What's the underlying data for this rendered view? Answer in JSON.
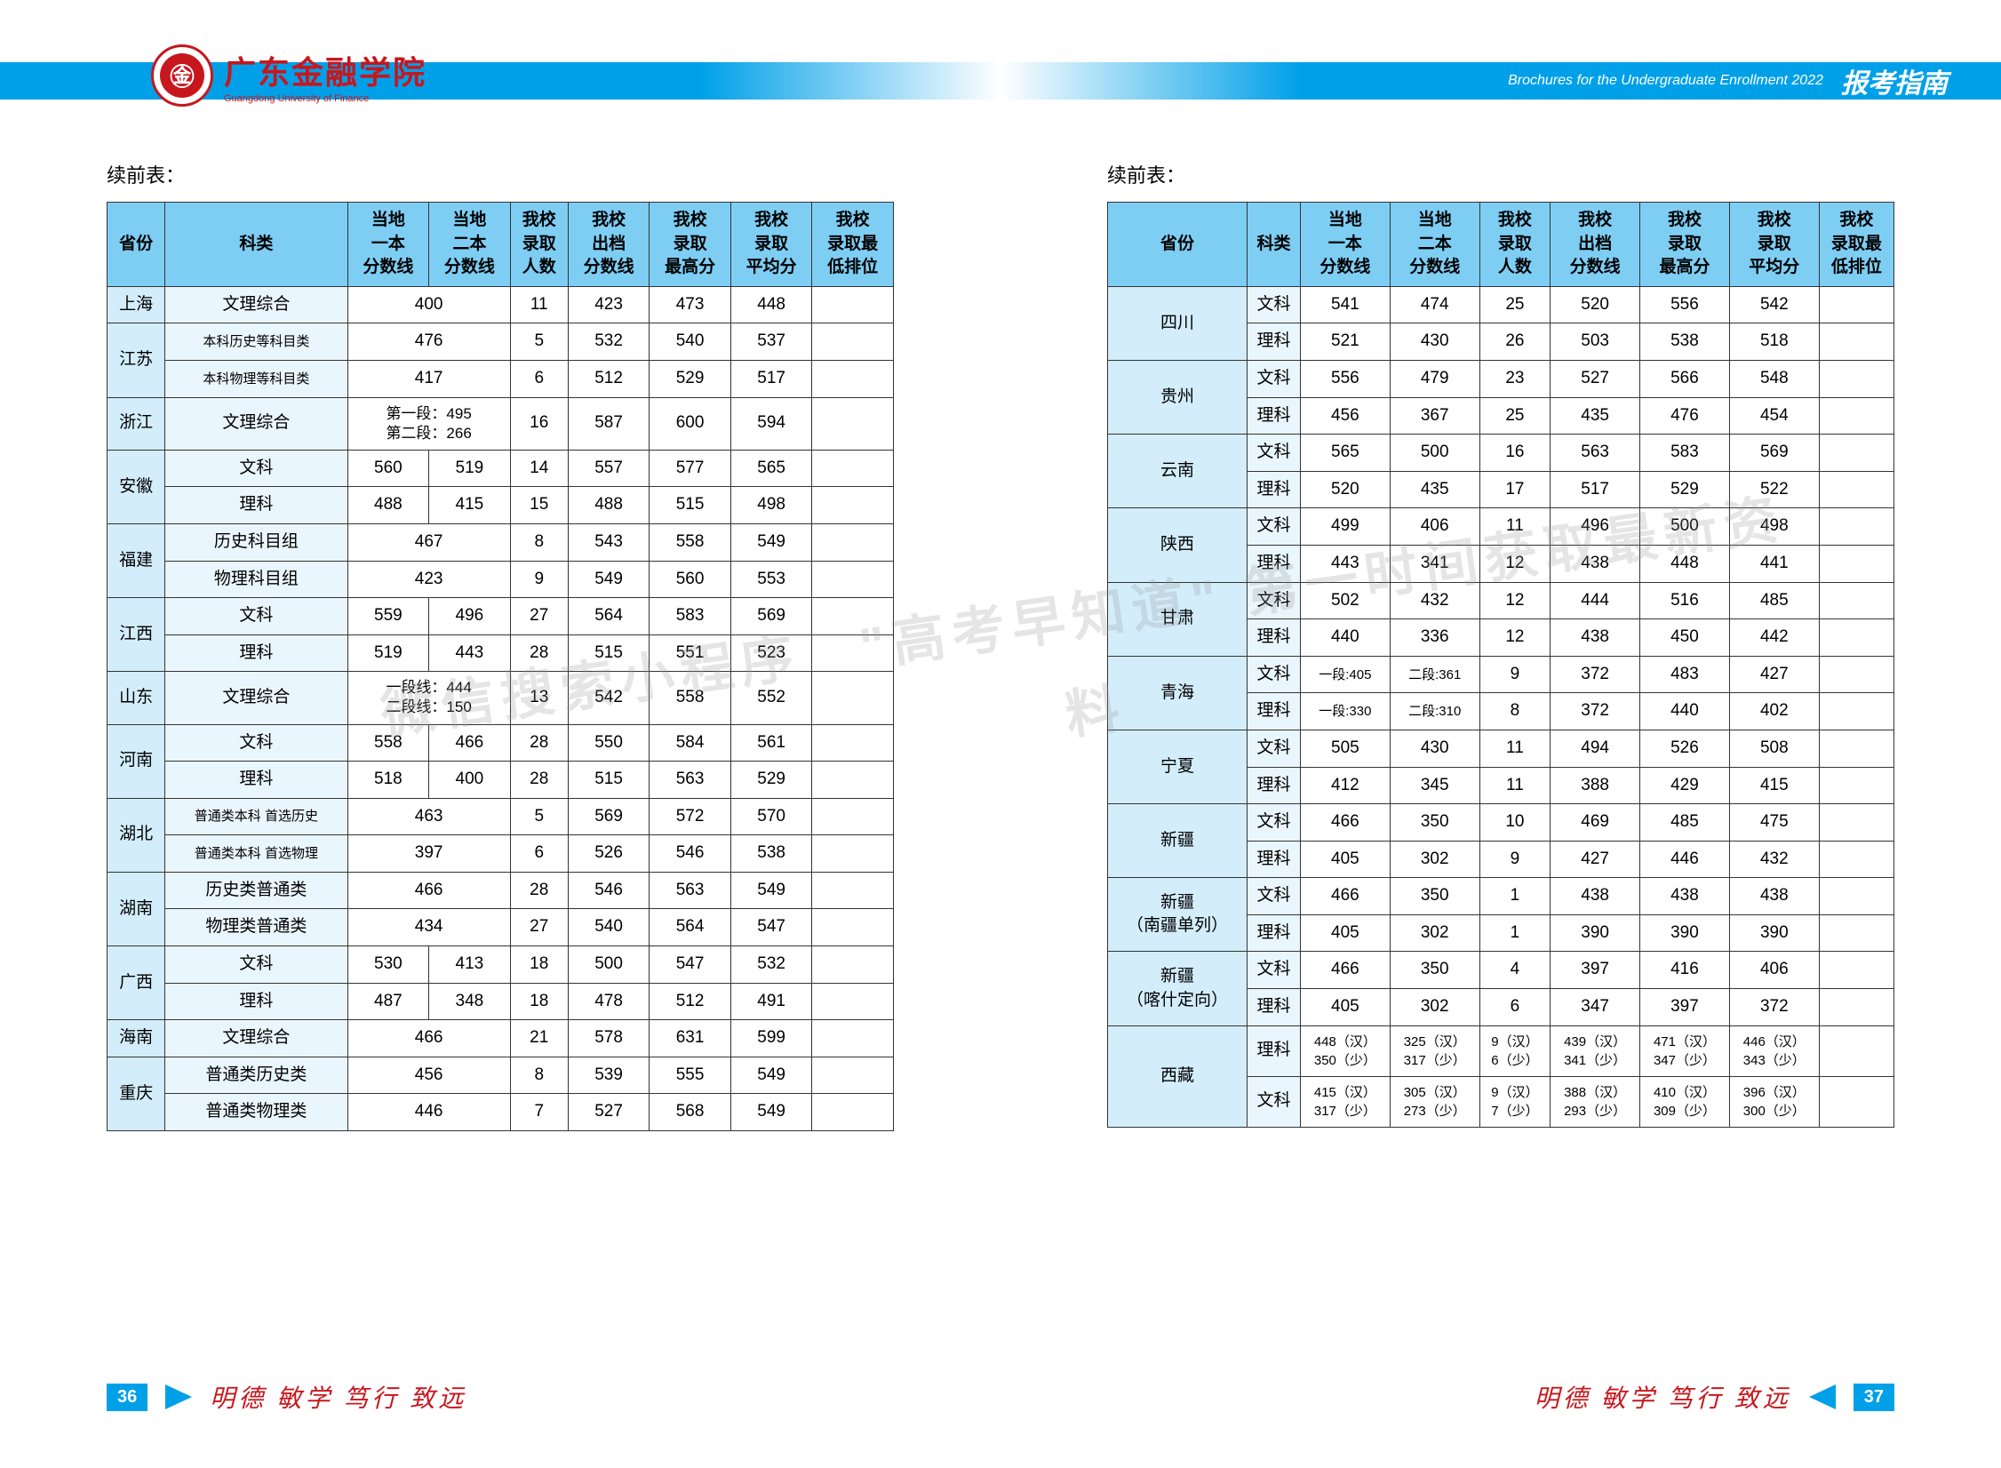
{
  "logo": {
    "cn": "广东金融学院",
    "en": "Guangdong University of Finance",
    "symbol": "㊎"
  },
  "header": {
    "brochure": "Brochures for the Undergraduate Enrollment 2022",
    "guide": "报考指南"
  },
  "caption": "续前表：",
  "headers": [
    "省份",
    "科类",
    "当地\n一本\n分数线",
    "当地\n二本\n分数线",
    "我校\n录取\n人数",
    "我校\n出档\n分数线",
    "我校\n录取\n最高分",
    "我校\n录取\n平均分",
    "我校\n录取最\n低排位"
  ],
  "left": [
    {
      "prov": "上海",
      "rows": [
        {
          "sub": "文理综合",
          "s1": "400",
          "merge": true,
          "n": "11",
          "a": "423",
          "b": "473",
          "c": "448",
          "d": ""
        }
      ]
    },
    {
      "prov": "江苏",
      "rows": [
        {
          "sub": "本科历史等科目类",
          "s1": "476",
          "merge": true,
          "n": "5",
          "a": "532",
          "b": "540",
          "c": "537",
          "d": ""
        },
        {
          "sub": "本科物理等科目类",
          "s1": "417",
          "merge": true,
          "n": "6",
          "a": "512",
          "b": "529",
          "c": "517",
          "d": ""
        }
      ]
    },
    {
      "prov": "浙江",
      "rows": [
        {
          "sub": "文理综合",
          "s1": "第一段：495\n第二段：266",
          "merge": true,
          "n": "16",
          "a": "587",
          "b": "600",
          "c": "594",
          "d": ""
        }
      ]
    },
    {
      "prov": "安徽",
      "rows": [
        {
          "sub": "文科",
          "s1": "560",
          "s2": "519",
          "n": "14",
          "a": "557",
          "b": "577",
          "c": "565",
          "d": ""
        },
        {
          "sub": "理科",
          "s1": "488",
          "s2": "415",
          "n": "15",
          "a": "488",
          "b": "515",
          "c": "498",
          "d": ""
        }
      ]
    },
    {
      "prov": "福建",
      "rows": [
        {
          "sub": "历史科目组",
          "s1": "467",
          "merge": true,
          "n": "8",
          "a": "543",
          "b": "558",
          "c": "549",
          "d": ""
        },
        {
          "sub": "物理科目组",
          "s1": "423",
          "merge": true,
          "n": "9",
          "a": "549",
          "b": "560",
          "c": "553",
          "d": ""
        }
      ]
    },
    {
      "prov": "江西",
      "rows": [
        {
          "sub": "文科",
          "s1": "559",
          "s2": "496",
          "n": "27",
          "a": "564",
          "b": "583",
          "c": "569",
          "d": ""
        },
        {
          "sub": "理科",
          "s1": "519",
          "s2": "443",
          "n": "28",
          "a": "515",
          "b": "551",
          "c": "523",
          "d": ""
        }
      ]
    },
    {
      "prov": "山东",
      "rows": [
        {
          "sub": "文理综合",
          "s1": "一段线：444\n二段线：150",
          "merge": true,
          "n": "13",
          "a": "542",
          "b": "558",
          "c": "552",
          "d": ""
        }
      ]
    },
    {
      "prov": "河南",
      "rows": [
        {
          "sub": "文科",
          "s1": "558",
          "s2": "466",
          "n": "28",
          "a": "550",
          "b": "584",
          "c": "561",
          "d": ""
        },
        {
          "sub": "理科",
          "s1": "518",
          "s2": "400",
          "n": "28",
          "a": "515",
          "b": "563",
          "c": "529",
          "d": ""
        }
      ]
    },
    {
      "prov": "湖北",
      "rows": [
        {
          "sub": "普通类本科 首选历史",
          "s1": "463",
          "merge": true,
          "n": "5",
          "a": "569",
          "b": "572",
          "c": "570",
          "d": ""
        },
        {
          "sub": "普通类本科 首选物理",
          "s1": "397",
          "merge": true,
          "n": "6",
          "a": "526",
          "b": "546",
          "c": "538",
          "d": ""
        }
      ]
    },
    {
      "prov": "湖南",
      "rows": [
        {
          "sub": "历史类普通类",
          "s1": "466",
          "merge": true,
          "n": "28",
          "a": "546",
          "b": "563",
          "c": "549",
          "d": ""
        },
        {
          "sub": "物理类普通类",
          "s1": "434",
          "merge": true,
          "n": "27",
          "a": "540",
          "b": "564",
          "c": "547",
          "d": ""
        }
      ]
    },
    {
      "prov": "广西",
      "rows": [
        {
          "sub": "文科",
          "s1": "530",
          "s2": "413",
          "n": "18",
          "a": "500",
          "b": "547",
          "c": "532",
          "d": ""
        },
        {
          "sub": "理科",
          "s1": "487",
          "s2": "348",
          "n": "18",
          "a": "478",
          "b": "512",
          "c": "491",
          "d": ""
        }
      ]
    },
    {
      "prov": "海南",
      "rows": [
        {
          "sub": "文理综合",
          "s1": "466",
          "merge": true,
          "n": "21",
          "a": "578",
          "b": "631",
          "c": "599",
          "d": ""
        }
      ]
    },
    {
      "prov": "重庆",
      "rows": [
        {
          "sub": "普通类历史类",
          "s1": "456",
          "merge": true,
          "n": "8",
          "a": "539",
          "b": "555",
          "c": "549",
          "d": ""
        },
        {
          "sub": "普通类物理类",
          "s1": "446",
          "merge": true,
          "n": "7",
          "a": "527",
          "b": "568",
          "c": "549",
          "d": ""
        }
      ]
    }
  ],
  "right": [
    {
      "prov": "四川",
      "rows": [
        {
          "sub": "文科",
          "s1": "541",
          "s2": "474",
          "n": "25",
          "a": "520",
          "b": "556",
          "c": "542",
          "d": ""
        },
        {
          "sub": "理科",
          "s1": "521",
          "s2": "430",
          "n": "26",
          "a": "503",
          "b": "538",
          "c": "518",
          "d": ""
        }
      ]
    },
    {
      "prov": "贵州",
      "rows": [
        {
          "sub": "文科",
          "s1": "556",
          "s2": "479",
          "n": "23",
          "a": "527",
          "b": "566",
          "c": "548",
          "d": ""
        },
        {
          "sub": "理科",
          "s1": "456",
          "s2": "367",
          "n": "25",
          "a": "435",
          "b": "476",
          "c": "454",
          "d": ""
        }
      ]
    },
    {
      "prov": "云南",
      "rows": [
        {
          "sub": "文科",
          "s1": "565",
          "s2": "500",
          "n": "16",
          "a": "563",
          "b": "583",
          "c": "569",
          "d": ""
        },
        {
          "sub": "理科",
          "s1": "520",
          "s2": "435",
          "n": "17",
          "a": "517",
          "b": "529",
          "c": "522",
          "d": ""
        }
      ]
    },
    {
      "prov": "陕西",
      "rows": [
        {
          "sub": "文科",
          "s1": "499",
          "s2": "406",
          "n": "11",
          "a": "496",
          "b": "500",
          "c": "498",
          "d": ""
        },
        {
          "sub": "理科",
          "s1": "443",
          "s2": "341",
          "n": "12",
          "a": "438",
          "b": "448",
          "c": "441",
          "d": ""
        }
      ]
    },
    {
      "prov": "甘肃",
      "rows": [
        {
          "sub": "文科",
          "s1": "502",
          "s2": "432",
          "n": "12",
          "a": "444",
          "b": "516",
          "c": "485",
          "d": ""
        },
        {
          "sub": "理科",
          "s1": "440",
          "s2": "336",
          "n": "12",
          "a": "438",
          "b": "450",
          "c": "442",
          "d": ""
        }
      ]
    },
    {
      "prov": "青海",
      "rows": [
        {
          "sub": "文科",
          "s1": "一段:405",
          "s2": "二段:361",
          "n": "9",
          "a": "372",
          "b": "483",
          "c": "427",
          "d": ""
        },
        {
          "sub": "理科",
          "s1": "一段:330",
          "s2": "二段:310",
          "n": "8",
          "a": "372",
          "b": "440",
          "c": "402",
          "d": ""
        }
      ]
    },
    {
      "prov": "宁夏",
      "rows": [
        {
          "sub": "文科",
          "s1": "505",
          "s2": "430",
          "n": "11",
          "a": "494",
          "b": "526",
          "c": "508",
          "d": ""
        },
        {
          "sub": "理科",
          "s1": "412",
          "s2": "345",
          "n": "11",
          "a": "388",
          "b": "429",
          "c": "415",
          "d": ""
        }
      ]
    },
    {
      "prov": "新疆",
      "rows": [
        {
          "sub": "文科",
          "s1": "466",
          "s2": "350",
          "n": "10",
          "a": "469",
          "b": "485",
          "c": "475",
          "d": ""
        },
        {
          "sub": "理科",
          "s1": "405",
          "s2": "302",
          "n": "9",
          "a": "427",
          "b": "446",
          "c": "432",
          "d": ""
        }
      ]
    },
    {
      "prov": "新疆\n（南疆单列）",
      "rows": [
        {
          "sub": "文科",
          "s1": "466",
          "s2": "350",
          "n": "1",
          "a": "438",
          "b": "438",
          "c": "438",
          "d": ""
        },
        {
          "sub": "理科",
          "s1": "405",
          "s2": "302",
          "n": "1",
          "a": "390",
          "b": "390",
          "c": "390",
          "d": ""
        }
      ]
    },
    {
      "prov": "新疆\n（喀什定向）",
      "rows": [
        {
          "sub": "文科",
          "s1": "466",
          "s2": "350",
          "n": "4",
          "a": "397",
          "b": "416",
          "c": "406",
          "d": ""
        },
        {
          "sub": "理科",
          "s1": "405",
          "s2": "302",
          "n": "6",
          "a": "347",
          "b": "397",
          "c": "372",
          "d": ""
        }
      ]
    },
    {
      "prov": "西藏",
      "rows": [
        {
          "sub": "理科",
          "s1": "448（汉）\n350（少）",
          "s2": "325（汉）\n317（少）",
          "n": "9（汉）\n6（少）",
          "a": "439（汉）\n341（少）",
          "b": "471（汉）\n347（少）",
          "c": "446（汉）\n343（少）",
          "d": "",
          "small": true
        },
        {
          "sub": "文科",
          "s1": "415（汉）\n317（少）",
          "s2": "305（汉）\n273（少）",
          "n": "9（汉）\n7（少）",
          "a": "388（汉）\n293（少）",
          "b": "410（汉）\n309（少）",
          "c": "396（汉）\n300（少）",
          "d": "",
          "small": true
        }
      ]
    }
  ],
  "watermark": "微信搜索小程序　\"高考早知道\"\n第一时间获取最新资料",
  "footer": {
    "motto": "明德 敏学 笃行 致远",
    "p1": "36",
    "p2": "37"
  },
  "colw": {
    "prov": "15%",
    "sub": "16%",
    "score": "9%",
    "num": "9%",
    "val": "10%",
    "last": "11%"
  }
}
